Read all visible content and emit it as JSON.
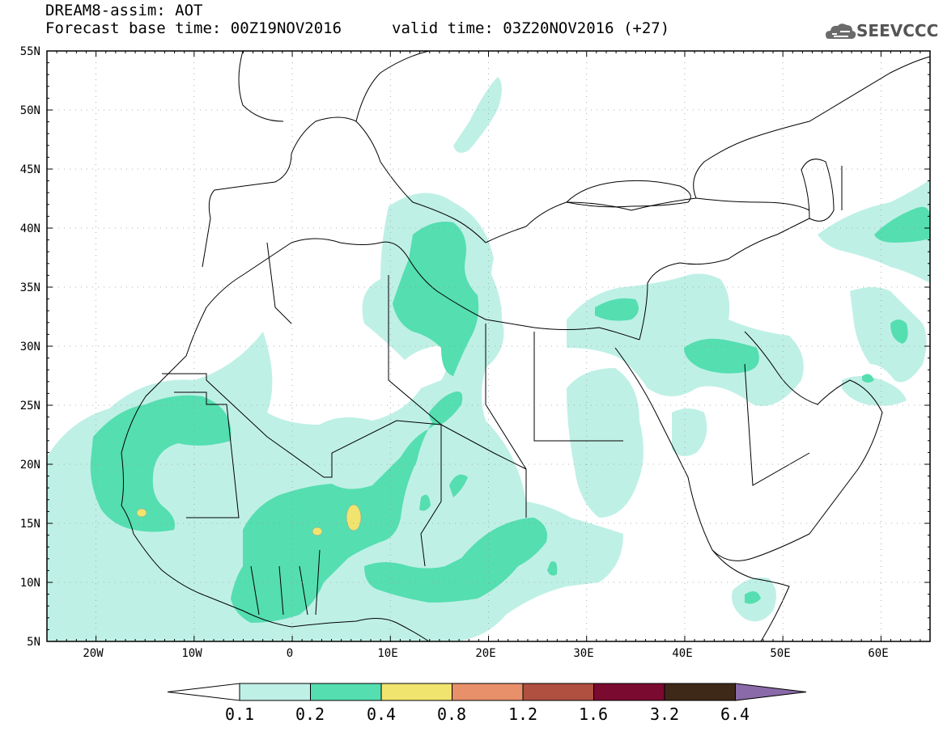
{
  "header": {
    "title": "DREAM8-assim: AOT",
    "base_time": "Forecast base time: 00Z19NOV2016",
    "valid_time": "valid time: 03Z20NOV2016 (+27)",
    "logo_text": "SEEVCCC"
  },
  "map": {
    "lon_range": [
      -25,
      65
    ],
    "lat_range": [
      5,
      55
    ],
    "lat_labels": [
      "55N",
      "50N",
      "45N",
      "40N",
      "35N",
      "30N",
      "25N",
      "20N",
      "15N",
      "10N",
      "5N"
    ],
    "lon_labels": [
      "20W",
      "10W",
      "0",
      "10E",
      "20E",
      "30E",
      "40E",
      "50E",
      "60E"
    ]
  },
  "colorbar": {
    "levels": [
      "0.1",
      "0.2",
      "0.4",
      "0.8",
      "1.2",
      "1.6",
      "3.2",
      "6.4"
    ],
    "colors": [
      "#ffffff",
      "#bff0e6",
      "#55deb0",
      "#f0e46e",
      "#e8906a",
      "#b05040",
      "#7a0a30",
      "#3e2818",
      "#8a6aa8"
    ]
  },
  "legend_colors": {
    "aot_0_1": "#bff0e6",
    "aot_0_2": "#55deb0",
    "aot_0_4": "#f0e46e"
  }
}
